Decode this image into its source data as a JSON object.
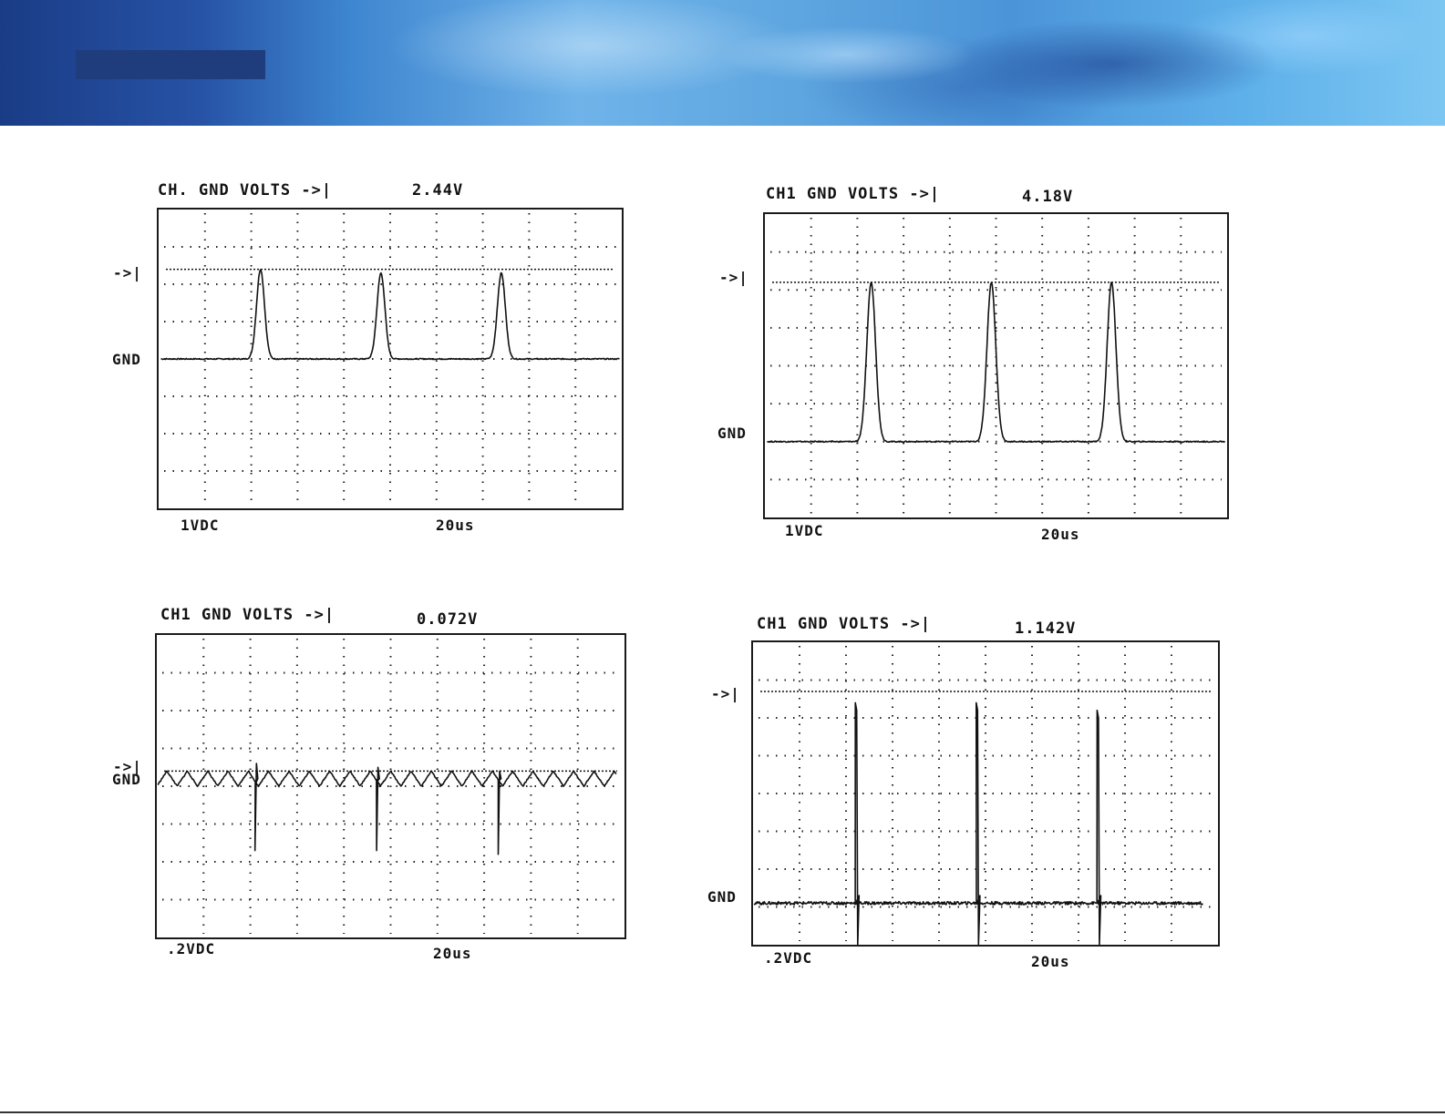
{
  "chart_data": [
    {
      "type": "line",
      "channel_label": "CH.",
      "gnd_label": "GND",
      "volts_label": "VOLTS",
      "cursor_symbol": "->|",
      "reading": "2.44V",
      "ground_label": "GND",
      "vertical_scale": "1VDC",
      "time_scale": "20us",
      "grid_divisions": [
        10,
        8
      ],
      "cursor_div": 6.4,
      "ground_div": 4,
      "pulses": [
        {
          "center_div": 2.2,
          "peak_div": 6.4,
          "width_div": 0.18
        },
        {
          "center_div": 4.8,
          "peak_div": 6.3,
          "width_div": 0.18
        },
        {
          "center_div": 7.4,
          "peak_div": 6.3,
          "width_div": 0.18
        }
      ]
    },
    {
      "type": "line",
      "channel_label": "CH1",
      "gnd_label": "GND",
      "volts_label": "VOLTS",
      "cursor_symbol": "->|",
      "reading": "4.18V",
      "ground_label": "GND",
      "vertical_scale": "1VDC",
      "time_scale": "20us",
      "grid_divisions": [
        10,
        8
      ],
      "cursor_div": 6.2,
      "ground_div": 2,
      "pulses": [
        {
          "center_div": 2.3,
          "peak_div": 6.2,
          "width_div": 0.2
        },
        {
          "center_div": 4.9,
          "peak_div": 6.2,
          "width_div": 0.2
        },
        {
          "center_div": 7.5,
          "peak_div": 6.2,
          "width_div": 0.2
        }
      ]
    },
    {
      "type": "line",
      "channel_label": "CH1",
      "gnd_label": "GND",
      "volts_label": "VOLTS",
      "cursor_symbol": "->|",
      "reading": "0.072V",
      "ground_label": "GND",
      "vertical_scale": ".2VDC",
      "time_scale": "20us",
      "grid_divisions": [
        10,
        8
      ],
      "cursor_div": 4.4,
      "ground_div": 4.2,
      "ripple_amplitude_div": 0.2,
      "spikes": [
        {
          "center_div": 2.1,
          "low_div": 2.3,
          "high_div": 4.6
        },
        {
          "center_div": 4.7,
          "low_div": 2.3,
          "high_div": 4.5
        },
        {
          "center_div": 7.3,
          "low_div": 2.2,
          "high_div": 4.4
        }
      ]
    },
    {
      "type": "line",
      "channel_label": "CH1",
      "gnd_label": "GND",
      "volts_label": "VOLTS",
      "cursor_symbol": "->|",
      "reading": "1.142V",
      "ground_label": "GND",
      "vertical_scale": ".2VDC",
      "time_scale": "20us",
      "grid_divisions": [
        10,
        8
      ],
      "cursor_div": 6.7,
      "ground_div": 1.1,
      "spikes": [
        {
          "center_div": 2.2,
          "low_div": 0,
          "high_div": 6.4
        },
        {
          "center_div": 4.8,
          "low_div": 0,
          "high_div": 6.4
        },
        {
          "center_div": 7.4,
          "low_div": 0,
          "high_div": 6.2
        }
      ]
    }
  ]
}
